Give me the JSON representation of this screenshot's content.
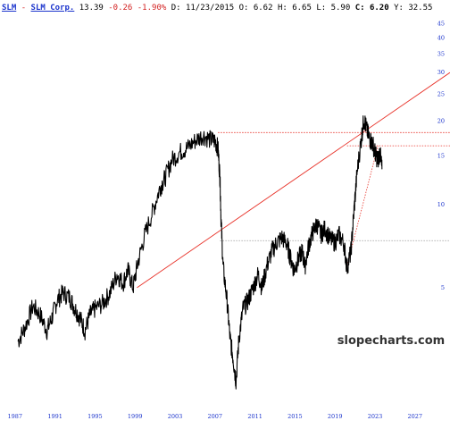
{
  "header": {
    "ticker": "SLM",
    "separator": "-",
    "company": "SLM Corp.",
    "last": "13.39",
    "change": "-0.26",
    "change_pct": "-1.90%",
    "date_label": "D:",
    "date": "11/23/2015",
    "open_label": "O:",
    "open": "6.62",
    "high_label": "H:",
    "high": "6.65",
    "low_label": "L:",
    "low": "5.90",
    "close_label": "C:",
    "close": "6.20",
    "y_label": "Y:",
    "y_value": "32.55"
  },
  "watermark": "slopecharts.com",
  "colors": {
    "price": "#000000",
    "axis_labels": "#1a33cc",
    "trendline": "#e8332a",
    "hline": "#e8332a",
    "grey_hline": "#999999"
  },
  "chart_data": {
    "type": "line",
    "scale": "log",
    "x_ticks": [
      "1987",
      "1991",
      "1995",
      "1999",
      "2003",
      "2007",
      "2011",
      "2015",
      "2019",
      "2023",
      "2027"
    ],
    "y_ticks": [
      "45",
      "40",
      "35",
      "30",
      "25",
      "20",
      "15",
      "10",
      "5"
    ],
    "ylim": [
      2,
      48
    ],
    "xlim": [
      1985.5,
      2030.5
    ],
    "series": [
      {
        "points": [
          [
            1987.3,
            3.2
          ],
          [
            1988.0,
            3.6
          ],
          [
            1988.8,
            4.3
          ],
          [
            1989.5,
            4.0
          ],
          [
            1990.2,
            3.5
          ],
          [
            1990.7,
            3.9
          ],
          [
            1991.2,
            4.5
          ],
          [
            1991.8,
            4.8
          ],
          [
            1992.5,
            4.6
          ],
          [
            1993.0,
            4.2
          ],
          [
            1993.5,
            3.9
          ],
          [
            1994.0,
            3.5
          ],
          [
            1994.5,
            4.0
          ],
          [
            1995.0,
            4.2
          ],
          [
            1995.8,
            4.4
          ],
          [
            1996.5,
            4.8
          ],
          [
            1997.2,
            5.6
          ],
          [
            1997.8,
            5.2
          ],
          [
            1998.3,
            5.8
          ],
          [
            1998.8,
            5.0
          ],
          [
            1999.3,
            6.2
          ],
          [
            2000.0,
            7.8
          ],
          [
            2000.8,
            9.5
          ],
          [
            2001.5,
            11.5
          ],
          [
            2002.0,
            12.5
          ],
          [
            2002.7,
            14.5
          ],
          [
            2003.5,
            15.5
          ],
          [
            2004.2,
            16.0
          ],
          [
            2005.0,
            17.0
          ],
          [
            2005.8,
            17.8
          ],
          [
            2006.5,
            17.2
          ],
          [
            2007.0,
            17.0
          ],
          [
            2007.3,
            16.0
          ],
          [
            2007.5,
            12.5
          ],
          [
            2007.6,
            9.0
          ],
          [
            2007.8,
            6.0
          ],
          [
            2008.2,
            4.5
          ],
          [
            2008.5,
            3.3
          ],
          [
            2008.8,
            2.8
          ],
          [
            2009.1,
            2.3
          ],
          [
            2009.4,
            3.3
          ],
          [
            2009.8,
            4.2
          ],
          [
            2010.3,
            4.5
          ],
          [
            2010.8,
            5.0
          ],
          [
            2011.3,
            5.6
          ],
          [
            2011.7,
            5.0
          ],
          [
            2012.2,
            6.0
          ],
          [
            2012.7,
            6.8
          ],
          [
            2013.2,
            7.3
          ],
          [
            2013.7,
            7.6
          ],
          [
            2014.2,
            7.2
          ],
          [
            2014.5,
            6.5
          ],
          [
            2014.9,
            5.8
          ],
          [
            2015.3,
            6.3
          ],
          [
            2015.7,
            6.8
          ],
          [
            2016.0,
            6.0
          ],
          [
            2016.4,
            7.2
          ],
          [
            2016.8,
            8.0
          ],
          [
            2017.2,
            8.5
          ],
          [
            2017.6,
            7.8
          ],
          [
            2018.0,
            8.2
          ],
          [
            2018.5,
            7.5
          ],
          [
            2019.0,
            7.3
          ],
          [
            2019.4,
            7.8
          ],
          [
            2019.9,
            7.2
          ],
          [
            2020.2,
            5.9
          ],
          [
            2020.6,
            6.8
          ],
          [
            2020.9,
            9.5
          ],
          [
            2021.2,
            13.0
          ],
          [
            2021.6,
            17.0
          ],
          [
            2021.9,
            20.5
          ],
          [
            2022.2,
            18.5
          ],
          [
            2022.5,
            17.2
          ],
          [
            2022.8,
            16.5
          ],
          [
            2023.1,
            15.0
          ],
          [
            2023.3,
            14.5
          ],
          [
            2023.5,
            15.5
          ],
          [
            2023.7,
            13.4
          ]
        ]
      }
    ],
    "overlays": [
      {
        "kind": "trendline",
        "from": [
          1999.2,
          5.0
        ],
        "to": [
          2030.5,
          30.0
        ]
      },
      {
        "kind": "hline",
        "y": 18.2,
        "from_x": 2007.3,
        "to_x": 2030.5
      },
      {
        "kind": "hline",
        "y": 16.3,
        "from_x": 2020.2,
        "to_x": 2030.5
      },
      {
        "kind": "hline",
        "y": 7.4,
        "from_x": 2007.5,
        "to_x": 2030.5,
        "color": "grey"
      },
      {
        "kind": "dotted_segment",
        "from": [
          2020.2,
          6.0
        ],
        "to": [
          2023.3,
          16.3
        ]
      }
    ]
  }
}
